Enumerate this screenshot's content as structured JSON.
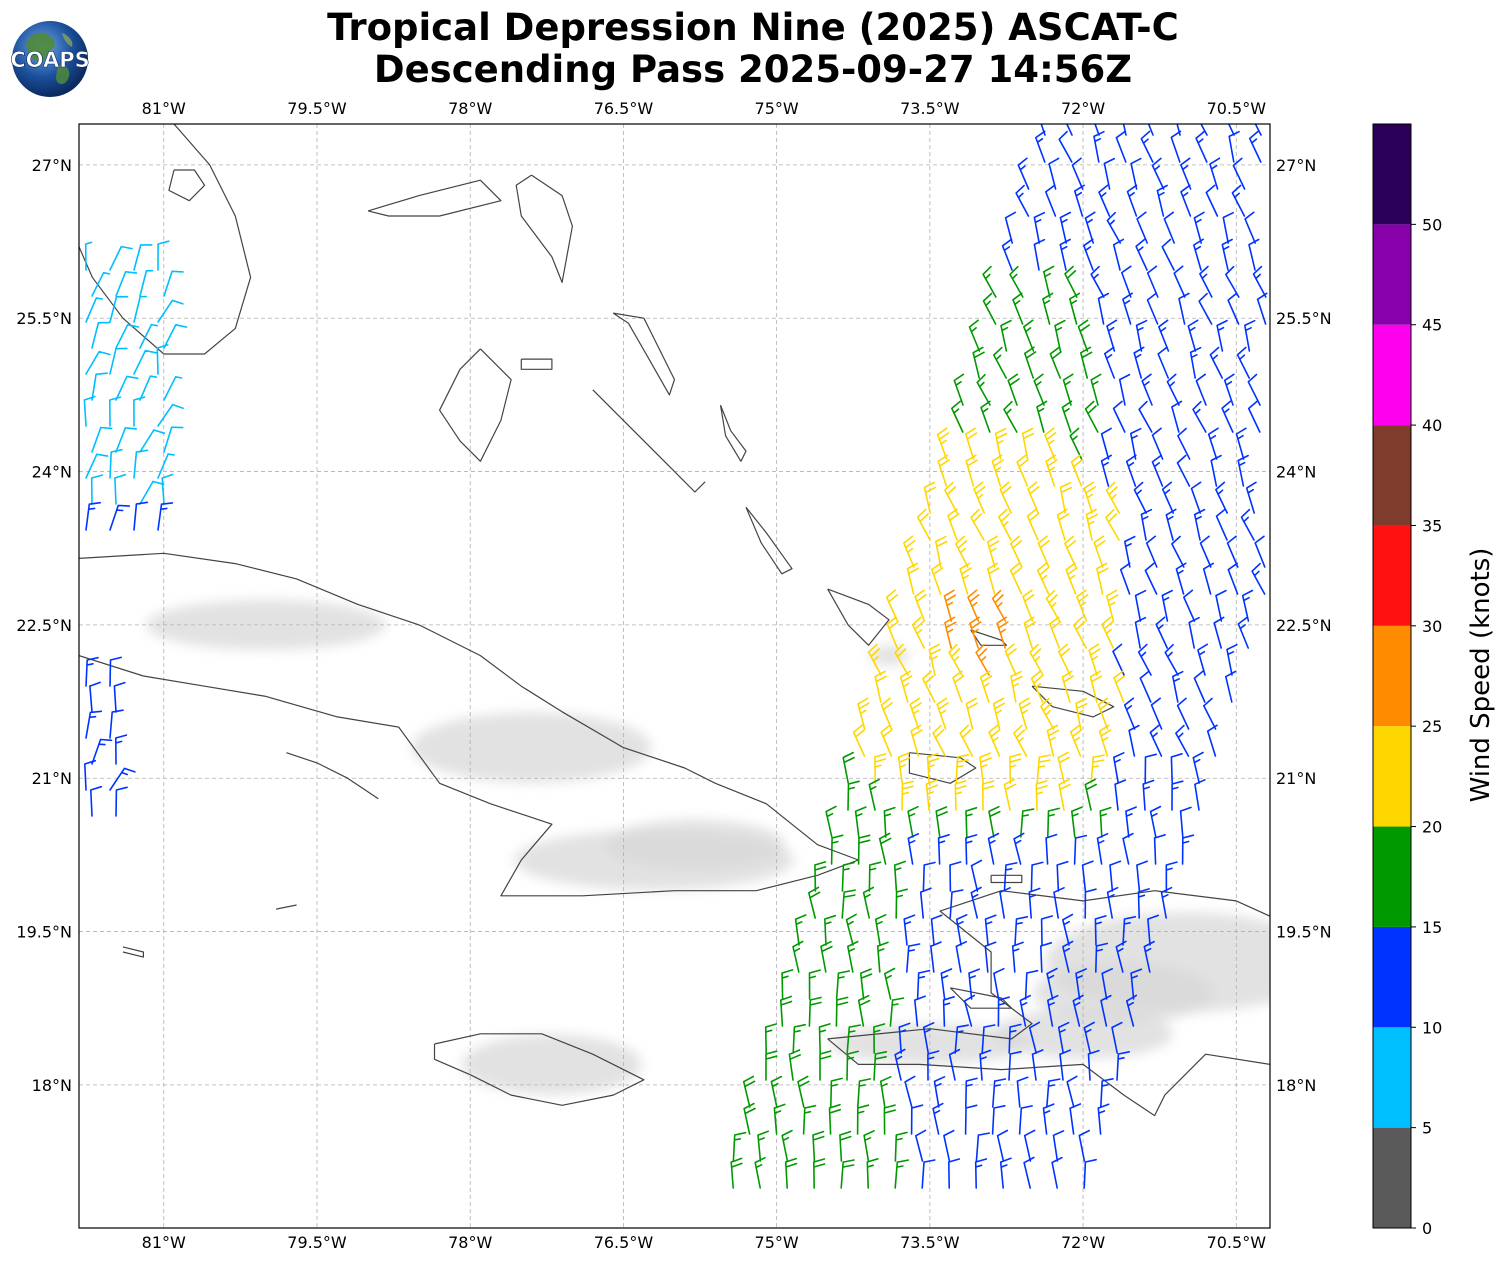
{
  "title": {
    "line1": "Tropical Depression Nine (2025) ASCAT-C",
    "line2": "Descending Pass 2025-09-27 14:56Z"
  },
  "logo": {
    "text": "COAPS",
    "icon": "earth-globe-icon"
  },
  "map": {
    "lon_ticks": [
      "81°W",
      "79.5°W",
      "78°W",
      "76.5°W",
      "75°W",
      "73.5°W",
      "72°W",
      "70.5°W"
    ],
    "lon_values": [
      -81,
      -79.5,
      -78,
      -76.5,
      -75,
      -73.5,
      -72,
      -70.5
    ],
    "lat_ticks": [
      "27°N",
      "25.5°N",
      "24°N",
      "22.5°N",
      "21°N",
      "19.5°N",
      "18°N"
    ],
    "lat_values": [
      27,
      25.5,
      24,
      22.5,
      21,
      19.5,
      18
    ],
    "lon_range": [
      -81.83,
      -70.17
    ],
    "lat_range": [
      16.6,
      27.4
    ],
    "grid": true,
    "colors": {
      "coast": "#444444",
      "grid": "#b0b0b0",
      "terrain": "#cccccc"
    }
  },
  "colorbar": {
    "title": "Wind Speed (knots)",
    "tick_labels": [
      "0",
      "5",
      "10",
      "15",
      "20",
      "25",
      "30",
      "35",
      "40",
      "45",
      "50"
    ],
    "bins": [
      {
        "min": 0,
        "max": 5,
        "color": "#5a5a5a"
      },
      {
        "min": 5,
        "max": 10,
        "color": "#00bfff"
      },
      {
        "min": 10,
        "max": 15,
        "color": "#0033ff"
      },
      {
        "min": 15,
        "max": 20,
        "color": "#009900"
      },
      {
        "min": 20,
        "max": 25,
        "color": "#ffd700"
      },
      {
        "min": 25,
        "max": 30,
        "color": "#ff8c00"
      },
      {
        "min": 30,
        "max": 35,
        "color": "#ff1111"
      },
      {
        "min": 35,
        "max": 40,
        "color": "#7f3b2b"
      },
      {
        "min": 40,
        "max": 45,
        "color": "#ff00ee"
      },
      {
        "min": 45,
        "max": 50,
        "color": "#8800aa"
      },
      {
        "min": 50,
        "max": 55,
        "color": "#2a0058"
      }
    ]
  }
}
